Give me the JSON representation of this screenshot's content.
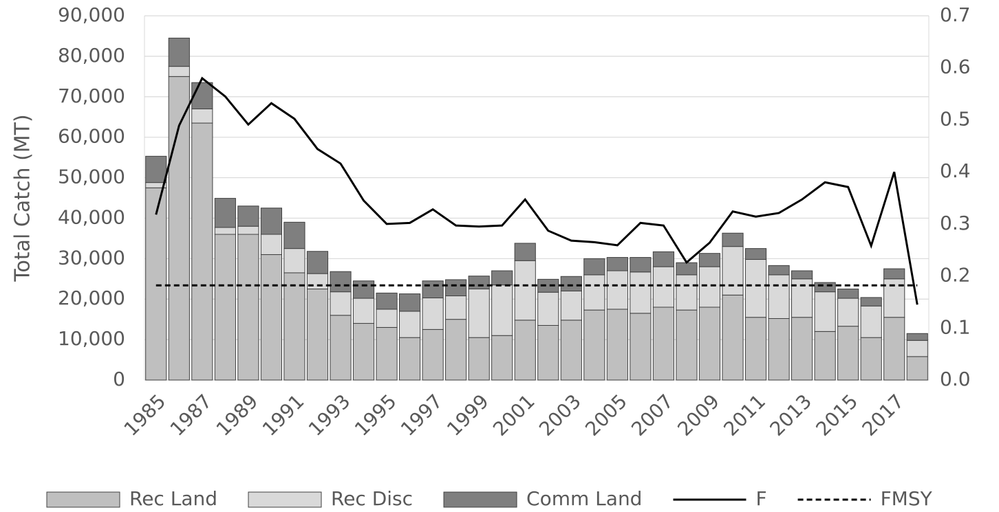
{
  "chart_data": {
    "type": "bar",
    "stacked": true,
    "y_label": "Total Catch (MT)",
    "categories": [
      "1985",
      null,
      "1987",
      null,
      "1989",
      null,
      "1991",
      null,
      "1993",
      null,
      "1995",
      null,
      "1997",
      null,
      "1999",
      null,
      "2001",
      null,
      "2003",
      null,
      "2005",
      null,
      "2007",
      null,
      "2009",
      null,
      "2011",
      null,
      "2013",
      null,
      "2015",
      null,
      "2017",
      null
    ],
    "ylim": [
      0,
      90000
    ],
    "yticks": [
      0,
      {
        "value": 10000,
        "label": "10,000"
      },
      {
        "value": 20000,
        "label": "20,000"
      },
      {
        "value": 30000,
        "label": "30,000"
      },
      {
        "value": 40000,
        "label": "40,000"
      },
      {
        "value": 50000,
        "label": "50,000"
      },
      {
        "value": 60000,
        "label": "60,000"
      },
      {
        "value": 70000,
        "label": "70,000"
      },
      {
        "value": 80000,
        "label": "80,000"
      },
      {
        "value": 90000,
        "label": "90,000"
      }
    ],
    "y2lim": [
      0,
      0.7
    ],
    "y2ticks": [
      {
        "value": 0,
        "label": "0.0"
      },
      0.1,
      0.2,
      0.3,
      0.4,
      0.5,
      0.6,
      0.7
    ],
    "grid": true,
    "legend": "bottom",
    "series": [
      {
        "name": "Rec Land",
        "type": "bar",
        "color": "#bfbfbf",
        "values": [
          47500,
          75000,
          63500,
          36000,
          36000,
          31000,
          26500,
          22500,
          16000,
          14000,
          13000,
          10500,
          12500,
          15000,
          10500,
          11000,
          14800,
          13500,
          14800,
          17300,
          17500,
          16500,
          18000,
          17300,
          18000,
          21000,
          15500,
          15200,
          15500,
          12000,
          13300,
          10500,
          15500,
          5800
        ]
      },
      {
        "name": "Rec Disc",
        "type": "bar",
        "color": "#d9d9d9",
        "values": [
          1300,
          2500,
          3500,
          1700,
          2000,
          5000,
          6000,
          3800,
          5800,
          6200,
          4500,
          6500,
          7800,
          5800,
          12000,
          12500,
          14700,
          8200,
          7200,
          8700,
          9500,
          10200,
          10000,
          8700,
          10000,
          12000,
          14300,
          10800,
          9500,
          9800,
          6900,
          7800,
          9500,
          4000
        ]
      },
      {
        "name": "Comm Land",
        "type": "bar",
        "color": "#7f7f7f",
        "values": [
          6500,
          7000,
          6500,
          7200,
          5000,
          6500,
          6500,
          5500,
          5000,
          4300,
          4000,
          4300,
          4200,
          4000,
          3200,
          3500,
          4300,
          3200,
          3600,
          4000,
          3300,
          3600,
          3700,
          3000,
          3300,
          3300,
          2700,
          2300,
          2000,
          2300,
          2300,
          2100,
          2500,
          1700
        ]
      },
      {
        "name": "F",
        "type": "line",
        "axis": "y2",
        "color": "#000000",
        "line_style": "solid",
        "values": [
          0.318,
          0.489,
          0.58,
          0.545,
          0.491,
          0.532,
          0.502,
          0.444,
          0.416,
          0.345,
          0.3,
          0.302,
          0.328,
          0.297,
          0.295,
          0.297,
          0.347,
          0.287,
          0.268,
          0.265,
          0.259,
          0.302,
          0.297,
          0.226,
          0.264,
          0.324,
          0.314,
          0.321,
          0.347,
          0.38,
          0.371,
          0.258,
          0.4,
          0.145
        ]
      },
      {
        "name": "FMSY",
        "type": "line",
        "axis": "y2",
        "color": "#000000",
        "line_style": "dashed",
        "values": [
          0.182,
          0.182,
          0.182,
          0.182,
          0.182,
          0.182,
          0.182,
          0.182,
          0.182,
          0.182,
          0.182,
          0.182,
          0.182,
          0.182,
          0.182,
          0.182,
          0.182,
          0.182,
          0.182,
          0.182,
          0.182,
          0.182,
          0.182,
          0.182,
          0.182,
          0.182,
          0.182,
          0.182,
          0.182,
          0.182,
          0.182,
          0.182,
          0.182,
          0.182
        ]
      }
    ]
  }
}
